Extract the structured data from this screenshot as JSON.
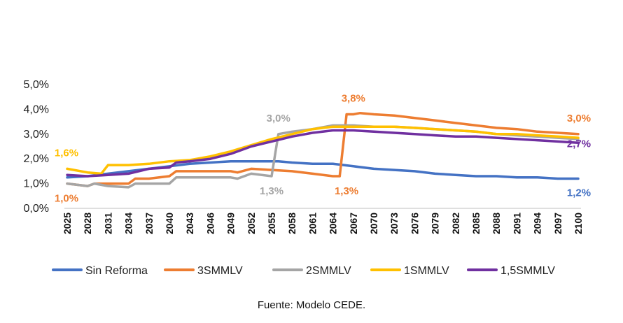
{
  "source_note": "Fuente: Modelo CEDE.",
  "chart_data": {
    "type": "line",
    "title": "",
    "xlabel": "",
    "ylabel": "",
    "ylim": [
      0,
      5
    ],
    "y_ticks": [
      "0,0%",
      "1,0%",
      "2,0%",
      "3,0%",
      "4,0%",
      "5,0%"
    ],
    "x_tick_labels": [
      "2025",
      "2028",
      "2031",
      "2034",
      "2037",
      "2040",
      "2043",
      "2046",
      "2049",
      "2052",
      "2055",
      "2058",
      "2061",
      "2064",
      "2067",
      "2070",
      "2073",
      "2076",
      "2079",
      "2082",
      "2085",
      "2088",
      "2091",
      "2094",
      "2097",
      "2100"
    ],
    "grid": false,
    "legend_position": "bottom",
    "series": [
      {
        "name": "Sin Reforma",
        "color": "#4472C4",
        "x": [
          2025,
          2028,
          2031,
          2034,
          2037,
          2040,
          2043,
          2046,
          2049,
          2052,
          2055,
          2056,
          2058,
          2061,
          2064,
          2067,
          2070,
          2073,
          2076,
          2079,
          2082,
          2085,
          2088,
          2091,
          2094,
          2097,
          2100
        ],
        "y": [
          1.25,
          1.3,
          1.4,
          1.5,
          1.6,
          1.7,
          1.8,
          1.85,
          1.9,
          1.9,
          1.9,
          1.9,
          1.85,
          1.8,
          1.8,
          1.7,
          1.6,
          1.55,
          1.5,
          1.4,
          1.35,
          1.3,
          1.3,
          1.25,
          1.25,
          1.2,
          1.2
        ]
      },
      {
        "name": "3SMMLV",
        "color": "#ED7D31",
        "x": [
          2025,
          2028,
          2029,
          2031,
          2034,
          2035,
          2037,
          2040,
          2041,
          2043,
          2046,
          2049,
          2050,
          2052,
          2055,
          2058,
          2061,
          2064,
          2065,
          2066,
          2067,
          2068,
          2070,
          2073,
          2076,
          2079,
          2082,
          2085,
          2088,
          2091,
          2094,
          2097,
          2100
        ],
        "y": [
          1.0,
          0.9,
          1.0,
          1.0,
          1.0,
          1.2,
          1.2,
          1.3,
          1.5,
          1.5,
          1.5,
          1.5,
          1.45,
          1.6,
          1.55,
          1.5,
          1.4,
          1.3,
          1.3,
          3.8,
          3.8,
          3.85,
          3.8,
          3.75,
          3.65,
          3.55,
          3.45,
          3.35,
          3.25,
          3.2,
          3.1,
          3.05,
          3.0
        ]
      },
      {
        "name": "2SMMLV",
        "color": "#A5A5A5",
        "x": [
          2025,
          2028,
          2029,
          2031,
          2034,
          2035,
          2037,
          2040,
          2041,
          2043,
          2046,
          2049,
          2050,
          2052,
          2055,
          2056,
          2058,
          2061,
          2064,
          2067,
          2070,
          2073,
          2076,
          2079,
          2082,
          2085,
          2088,
          2091,
          2094,
          2097,
          2100
        ],
        "y": [
          1.0,
          0.9,
          1.0,
          0.9,
          0.85,
          1.0,
          1.0,
          1.0,
          1.25,
          1.25,
          1.25,
          1.25,
          1.2,
          1.4,
          1.3,
          3.0,
          3.1,
          3.2,
          3.35,
          3.35,
          3.3,
          3.3,
          3.25,
          3.2,
          3.15,
          3.1,
          3.0,
          2.95,
          2.9,
          2.85,
          2.8
        ]
      },
      {
        "name": "1SMMLV",
        "color": "#FFC000",
        "x": [
          2025,
          2028,
          2030,
          2031,
          2034,
          2037,
          2040,
          2043,
          2046,
          2049,
          2052,
          2055,
          2058,
          2061,
          2064,
          2067,
          2070,
          2073,
          2076,
          2079,
          2082,
          2085,
          2088,
          2091,
          2094,
          2097,
          2100
        ],
        "y": [
          1.6,
          1.45,
          1.4,
          1.75,
          1.75,
          1.8,
          1.9,
          1.95,
          2.1,
          2.3,
          2.55,
          2.8,
          3.0,
          3.2,
          3.3,
          3.3,
          3.3,
          3.3,
          3.25,
          3.2,
          3.15,
          3.1,
          3.0,
          3.0,
          2.95,
          2.9,
          2.85
        ]
      },
      {
        "name": "1,5SMMLV",
        "color": "#7030A0",
        "x": [
          2025,
          2028,
          2031,
          2034,
          2037,
          2040,
          2041,
          2043,
          2046,
          2049,
          2050,
          2052,
          2055,
          2058,
          2061,
          2064,
          2067,
          2070,
          2073,
          2076,
          2079,
          2082,
          2085,
          2088,
          2091,
          2094,
          2097,
          2100
        ],
        "y": [
          1.35,
          1.3,
          1.35,
          1.4,
          1.6,
          1.65,
          1.85,
          1.9,
          2.0,
          2.2,
          2.3,
          2.5,
          2.7,
          2.9,
          3.05,
          3.15,
          3.15,
          3.1,
          3.05,
          3.0,
          2.95,
          2.9,
          2.9,
          2.85,
          2.8,
          2.75,
          2.7,
          2.65
        ]
      }
    ],
    "data_labels": [
      {
        "text": "1,6%",
        "color": "#FFC000",
        "x": 2025,
        "y": 1.6,
        "pos": "above"
      },
      {
        "text": "1,0%",
        "color": "#ED7D31",
        "x": 2025,
        "y": 1.0,
        "pos": "below"
      },
      {
        "text": "3,0%",
        "color": "#A5A5A5",
        "x": 2056,
        "y": 3.0,
        "pos": "above"
      },
      {
        "text": "1,3%",
        "color": "#A5A5A5",
        "x": 2055,
        "y": 1.3,
        "pos": "below"
      },
      {
        "text": "3,8%",
        "color": "#ED7D31",
        "x": 2067,
        "y": 3.8,
        "pos": "above"
      },
      {
        "text": "1,3%",
        "color": "#ED7D31",
        "x": 2066,
        "y": 1.3,
        "pos": "below"
      },
      {
        "text": "3,0%",
        "color": "#ED7D31",
        "x": 2100,
        "y": 3.0,
        "pos": "above"
      },
      {
        "text": "2,7%",
        "color": "#7030A0",
        "x": 2100,
        "y": 2.7,
        "pos": "below"
      },
      {
        "text": "1,2%",
        "color": "#4472C4",
        "x": 2100,
        "y": 1.2,
        "pos": "below"
      }
    ]
  }
}
